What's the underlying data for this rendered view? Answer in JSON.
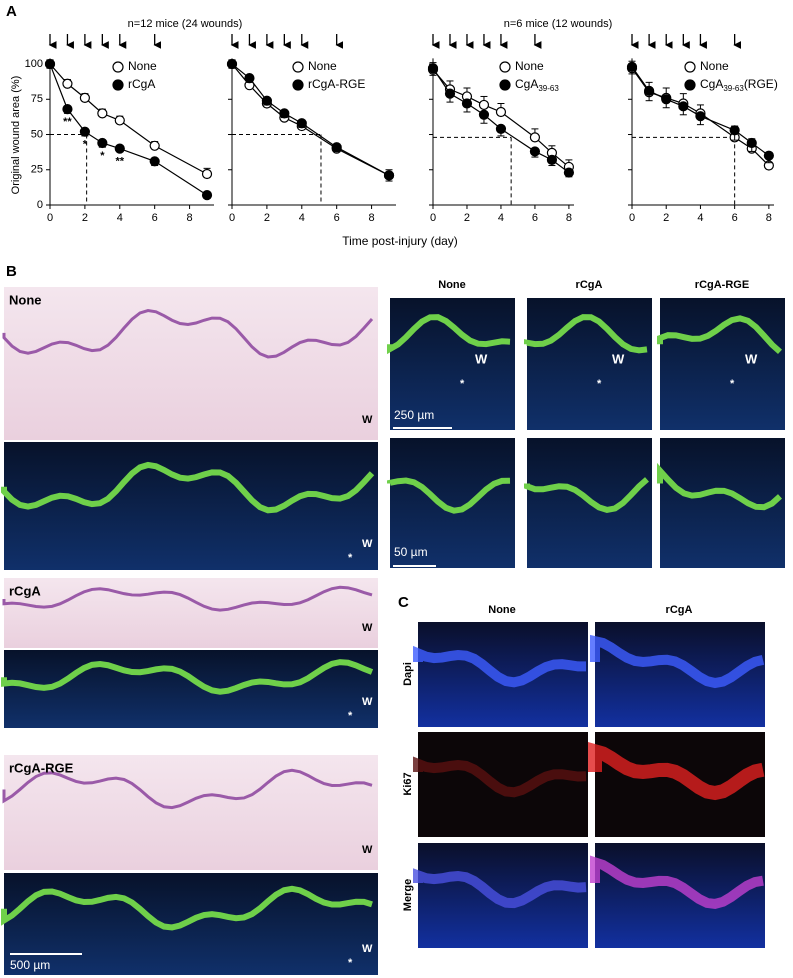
{
  "panel_a": {
    "label": "A",
    "y_label": "Original wound area (%)",
    "x_label": "Time post-injury (day)",
    "groups": [
      "n=12 mice (24 wounds)",
      "n=6 mice (12 wounds)"
    ]
  },
  "chart_data": [
    {
      "type": "line",
      "x": [
        0,
        1,
        2,
        3,
        4,
        6,
        9
      ],
      "xlim": [
        0,
        9.4
      ],
      "xticks": [
        0,
        2,
        4,
        6,
        8
      ],
      "ylim": [
        0,
        104
      ],
      "yticks": [
        0,
        25,
        50,
        75,
        100
      ],
      "ytick_labels": true,
      "arrows_x": [
        0,
        1,
        2,
        3,
        4,
        6
      ],
      "half": {
        "x": 2.1,
        "y": 50
      },
      "series": [
        {
          "name": "None",
          "color": "#ffffff",
          "values": [
            100,
            86,
            76,
            65,
            60,
            42,
            22
          ],
          "errors": [
            3,
            3,
            3,
            3,
            3,
            3,
            4
          ]
        },
        {
          "name": "rCgA",
          "color": "#000000",
          "values": [
            100,
            68,
            52,
            44,
            40,
            31,
            7
          ],
          "errors": [
            3,
            3,
            3,
            3,
            2,
            3,
            2
          ],
          "significance": [
            null,
            "**",
            "*",
            "*",
            "**",
            null,
            null
          ]
        }
      ]
    },
    {
      "type": "line",
      "x": [
        0,
        1,
        2,
        3,
        4,
        6,
        9
      ],
      "xlim": [
        0,
        9.4
      ],
      "xticks": [
        0,
        2,
        4,
        6,
        8
      ],
      "ylim": [
        0,
        104
      ],
      "yticks": [
        0,
        25,
        50,
        75,
        100
      ],
      "ytick_labels": false,
      "arrows_x": [
        0,
        1,
        2,
        3,
        4,
        6
      ],
      "half": {
        "x": 5.1,
        "y": 50
      },
      "series": [
        {
          "name": "None",
          "color": "#ffffff",
          "values": [
            100,
            85,
            72,
            62,
            56,
            40,
            21
          ],
          "errors": [
            3,
            3,
            3,
            3,
            3,
            3,
            4
          ]
        },
        {
          "name": "rCgA-RGE",
          "color": "#000000",
          "values": [
            100,
            90,
            74,
            65,
            58,
            41,
            21
          ],
          "errors": [
            3,
            3,
            3,
            3,
            3,
            3,
            4
          ]
        }
      ]
    },
    {
      "type": "line",
      "x": [
        0,
        1,
        2,
        3,
        4,
        6,
        7,
        8
      ],
      "xlim": [
        0,
        8.3
      ],
      "xticks": [
        0,
        2,
        4,
        6,
        8
      ],
      "ylim": [
        0,
        104
      ],
      "yticks": [
        0,
        25,
        50,
        75,
        100
      ],
      "ytick_labels": false,
      "arrows_x": [
        0,
        1,
        2,
        3,
        4,
        6
      ],
      "half": {
        "x": 4.6,
        "y": 48
      },
      "series": [
        {
          "name": "None",
          "color": "#ffffff",
          "values": [
            96,
            82,
            77,
            71,
            66,
            48,
            37,
            27
          ],
          "errors": [
            5,
            6,
            6,
            6,
            6,
            6,
            5,
            5
          ]
        },
        {
          "name": "CgA",
          "name_sub": "39-63",
          "color": "#000000",
          "values": [
            97,
            79,
            72,
            64,
            54,
            38,
            32,
            23
          ],
          "errors": [
            5,
            6,
            6,
            6,
            5,
            4,
            4,
            3
          ]
        }
      ]
    },
    {
      "type": "line",
      "x": [
        0,
        1,
        2,
        3,
        4,
        6,
        7,
        8
      ],
      "xlim": [
        0,
        8.3
      ],
      "xticks": [
        0,
        2,
        4,
        6,
        8
      ],
      "ylim": [
        0,
        104
      ],
      "yticks": [
        0,
        25,
        50,
        75,
        100
      ],
      "ytick_labels": false,
      "arrows_x": [
        0,
        1,
        2,
        3,
        4,
        6
      ],
      "half": {
        "x": 6,
        "y": 48
      },
      "series": [
        {
          "name": "None",
          "color": "#ffffff",
          "values": [
            97,
            80,
            76,
            72,
            65,
            48,
            40,
            28
          ],
          "errors": [
            5,
            7,
            7,
            7,
            6,
            8,
            7,
            6
          ]
        },
        {
          "name": "CgA",
          "name_sub": "39-63",
          "name_suffix": "(RGE)",
          "color": "#000000",
          "values": [
            98,
            81,
            75,
            70,
            63,
            53,
            44,
            35
          ],
          "errors": [
            5,
            7,
            6,
            6,
            6,
            7,
            6,
            5
          ]
        }
      ]
    }
  ],
  "panel_b": {
    "label": "B",
    "left_titles": [
      "None",
      "rCgA",
      "rCgA-RGE"
    ],
    "columns": [
      "None",
      "rCgA",
      "rCgA-RGE"
    ],
    "scale_left": "500 µm",
    "scale_top": "250 µm",
    "scale_bottom": "50 µm",
    "wound": "W",
    "edge": "*"
  },
  "panel_c": {
    "label": "C",
    "columns": [
      "None",
      "rCgA"
    ],
    "rows": [
      "Dapi",
      "Ki67",
      "Merge"
    ]
  }
}
